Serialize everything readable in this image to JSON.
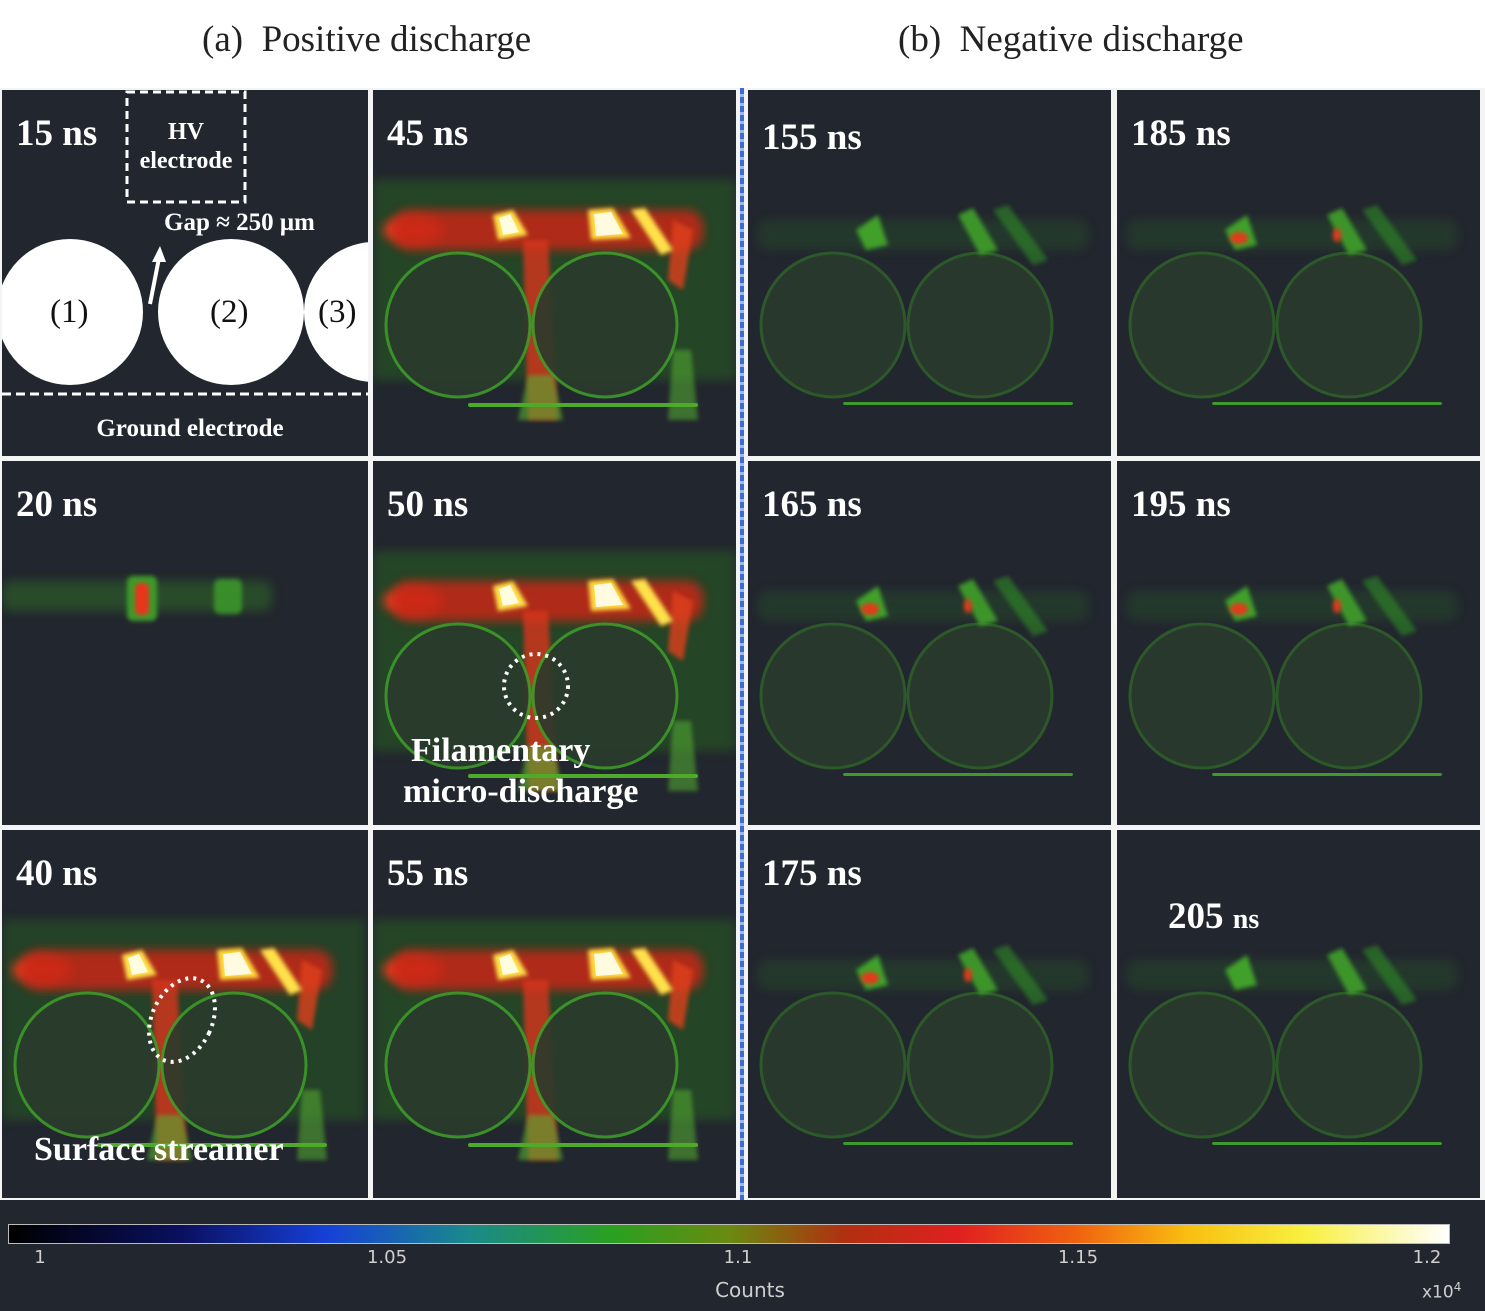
{
  "titles": {
    "positive": "(a)  Positive discharge",
    "negative": "(b)  Negative discharge"
  },
  "panels": {
    "p15": {
      "time": "15 ns"
    },
    "p45": {
      "time": "45 ns"
    },
    "p155": {
      "time": "155 ns"
    },
    "p185": {
      "time": "185 ns"
    },
    "p20": {
      "time": "20 ns"
    },
    "p50": {
      "time": "50 ns"
    },
    "p165": {
      "time": "165 ns"
    },
    "p195": {
      "time": "195 ns"
    },
    "p40": {
      "time": "40 ns"
    },
    "p55": {
      "time": "55 ns"
    },
    "p175": {
      "time": "175 ns"
    },
    "p205": {
      "time_num": "205",
      "time_unit": "ns"
    }
  },
  "schematic": {
    "hv_line1": "HV",
    "hv_line2": "electrode",
    "gap": "Gap ≈ 250 μm",
    "bead1": "(1)",
    "bead2": "(2)",
    "bead3": "(3)",
    "ground": "Ground electrode"
  },
  "annotations": {
    "filament_line1": "Filamentary",
    "filament_line2": "micro-discharge",
    "streamer": "Surface streamer"
  },
  "colorbar": {
    "ticks": [
      "1",
      "1.05",
      "1.1",
      "1.15",
      "1.2"
    ],
    "label": "Counts",
    "multiplier": "x10",
    "exponent": "4"
  }
}
